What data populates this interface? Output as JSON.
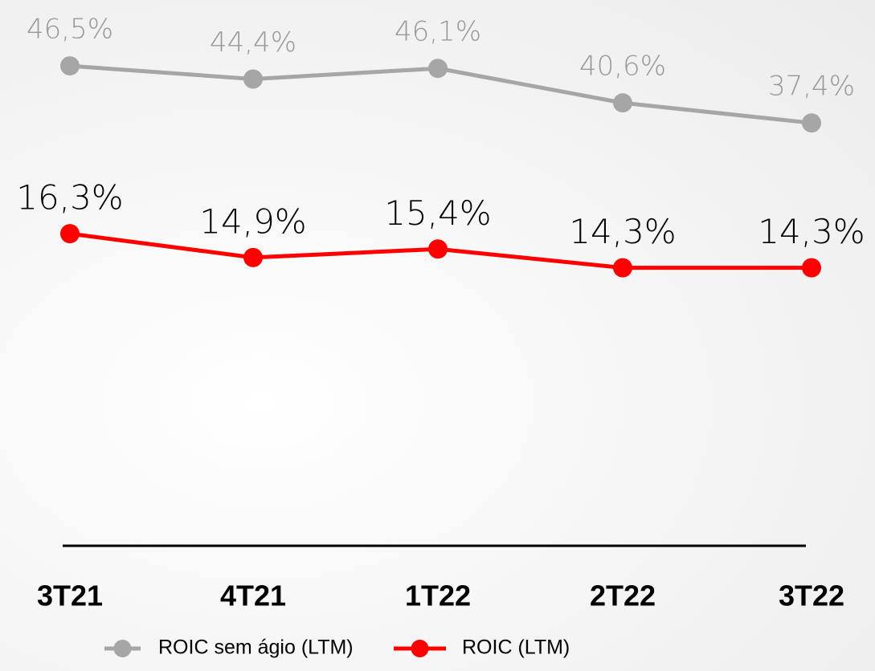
{
  "chart_data": {
    "type": "line",
    "categories": [
      "3T21",
      "4T21",
      "1T22",
      "2T22",
      "3T22"
    ],
    "series": [
      {
        "name": "ROIC sem ágio (LTM)",
        "color": "#a6a6a6",
        "values": [
          46.5,
          44.4,
          46.1,
          40.6,
          37.4
        ],
        "value_labels": [
          "46,5%",
          "44,4%",
          "46,1%",
          "40,6%",
          "37,4%"
        ]
      },
      {
        "name": "ROIC (LTM)",
        "color": "#ff0000",
        "axis": "y2",
        "values": [
          16.3,
          14.9,
          15.4,
          14.3,
          14.3
        ],
        "value_labels": [
          "16,3%",
          "14,9%",
          "15,4%",
          "14,3%",
          "14,3%"
        ]
      }
    ],
    "ylim": [
      -30,
      57
    ],
    "y2lim": [
      -2,
      30
    ],
    "legend": "bottom"
  }
}
